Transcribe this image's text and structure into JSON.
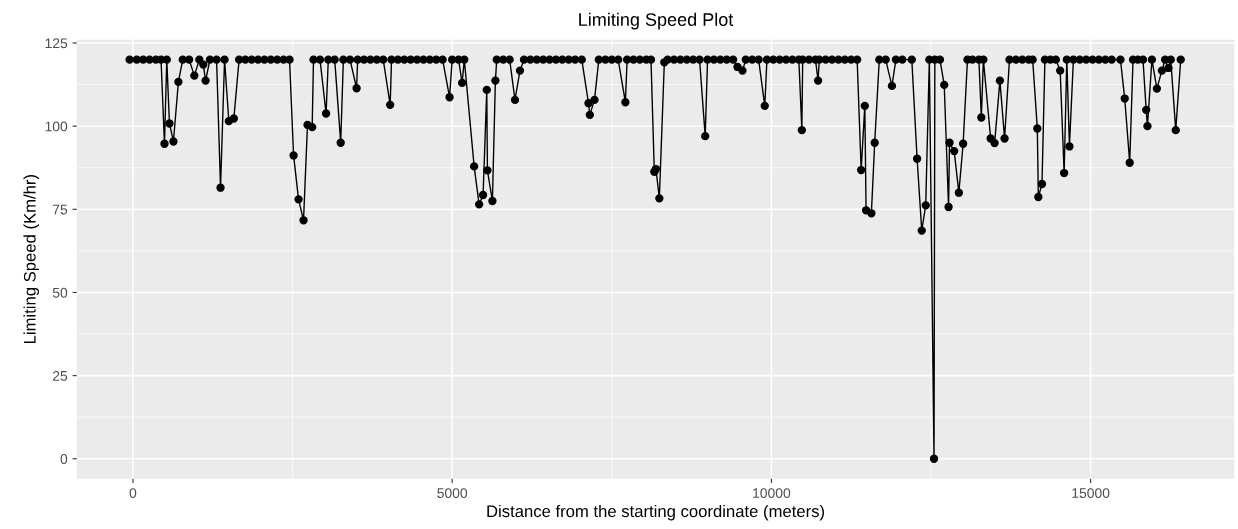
{
  "chart_data": {
    "type": "line",
    "title": "Limiting Speed Plot",
    "xlabel": "Distance from the starting coordinate (meters)",
    "ylabel": "Limiting Speed (Km/hr)",
    "xlim": [
      -880,
      17250
    ],
    "ylim": [
      -6,
      126
    ],
    "xticks": [
      0,
      5000,
      10000,
      15000
    ],
    "yticks": [
      0,
      25,
      50,
      75,
      100,
      125
    ],
    "grid": true,
    "marker": "circle",
    "line_style": "solid",
    "series": [
      {
        "color": "#000000",
        "x": [
          -52,
          60,
          160,
          260,
          360,
          440,
          494,
          530,
          572,
          634,
          712,
          780,
          880,
          962,
          1040,
          1102,
          1138,
          1206,
          1310,
          1372,
          1435,
          1502,
          1580,
          1663,
          1760,
          1860,
          1960,
          2060,
          2160,
          2260,
          2360,
          2453,
          2516,
          2594,
          2672,
          2734,
          2807,
          2828,
          2930,
          3025,
          3060,
          3160,
          3254,
          3296,
          3400,
          3503,
          3520,
          3620,
          3720,
          3820,
          3920,
          4029,
          4050,
          4150,
          4250,
          4350,
          4450,
          4550,
          4650,
          4750,
          4850,
          4959,
          5000,
          5100,
          5156,
          5190,
          5344,
          5422,
          5484,
          5542,
          5552,
          5630,
          5677,
          5698,
          5800,
          5900,
          5984,
          6062,
          6125,
          6225,
          6325,
          6425,
          6525,
          6625,
          6725,
          6825,
          6925,
          7030,
          7135,
          7156,
          7229,
          7297,
          7400,
          7500,
          7600,
          7713,
          7740,
          7840,
          7940,
          8040,
          8114,
          8166,
          8192,
          8245,
          8323,
          8375,
          8475,
          8575,
          8675,
          8775,
          8875,
          8963,
          9000,
          9100,
          9200,
          9300,
          9400,
          9469,
          9547,
          9599,
          9700,
          9800,
          9896,
          9930,
          10030,
          10130,
          10230,
          10330,
          10430,
          10477,
          10490,
          10590,
          10690,
          10731,
          10750,
          10850,
          10950,
          11050,
          11150,
          11250,
          11343,
          11406,
          11463,
          11483,
          11566,
          11618,
          11690,
          11790,
          11888,
          11950,
          12050,
          12199,
          12282,
          12355,
          12417,
          12474,
          12547,
          12560,
          12640,
          12707,
          12775,
          12790,
          12863,
          12936,
          13003,
          13071,
          13150,
          13250,
          13288,
          13320,
          13434,
          13496,
          13579,
          13652,
          13729,
          13830,
          13930,
          14030,
          14092,
          14165,
          14181,
          14238,
          14284,
          14370,
          14455,
          14523,
          14585,
          14627,
          14668,
          14730,
          14830,
          14930,
          15030,
          15130,
          15230,
          15330,
          15467,
          15534,
          15612,
          15664,
          15740,
          15820,
          15870,
          15890,
          15960,
          16038,
          16116,
          16167,
          16219,
          16255,
          16333,
          16411
        ],
        "values": [
          120,
          120,
          120,
          120,
          120,
          120,
          94.7,
          120,
          100.8,
          95.4,
          113.3,
          120,
          120,
          115.2,
          120,
          118.5,
          113.7,
          120,
          120,
          81.5,
          120,
          101.5,
          102.3,
          120,
          120,
          120,
          120,
          120,
          120,
          120,
          120,
          120,
          91.2,
          78,
          71.7,
          100.4,
          99.7,
          120,
          120,
          103.8,
          120,
          120,
          95,
          120,
          120,
          111.4,
          120,
          120,
          120,
          120,
          120,
          106.4,
          120,
          120,
          120,
          120,
          120,
          120,
          120,
          120,
          120,
          108.7,
          120,
          120,
          113,
          120,
          87.9,
          76.5,
          79.3,
          110.9,
          86.7,
          77.5,
          113.7,
          120,
          120,
          120,
          107.9,
          116.7,
          120,
          120,
          120,
          120,
          120,
          120,
          120,
          120,
          120,
          120,
          106.9,
          103.4,
          107.9,
          120,
          120,
          120,
          120,
          107.2,
          120,
          120,
          120,
          120,
          120,
          86.3,
          87.1,
          78.3,
          119.2,
          120,
          120,
          120,
          120,
          120,
          120,
          97,
          120,
          120,
          120,
          120,
          120,
          117.8,
          116.7,
          120,
          120,
          120,
          106.1,
          120,
          120,
          120,
          120,
          120,
          120,
          98.8,
          120,
          120,
          120,
          113.7,
          120,
          120,
          120,
          120,
          120,
          120,
          120,
          86.8,
          106.1,
          74.7,
          73.8,
          95,
          120,
          120,
          112.1,
          120,
          120,
          120,
          90.2,
          68.6,
          76.2,
          120,
          0,
          120,
          120,
          112.4,
          75.7,
          95,
          92.5,
          80,
          94.7,
          120,
          120,
          120,
          102.6,
          120,
          96.3,
          94.9,
          113.7,
          96.3,
          120,
          120,
          120,
          120,
          120,
          99.3,
          78.7,
          82.6,
          120,
          120,
          120,
          116.7,
          85.9,
          120,
          93.9,
          120,
          120,
          120,
          120,
          120,
          120,
          120,
          120,
          108.3,
          89,
          120,
          120,
          120,
          104.9,
          100,
          120,
          111.3,
          116.7,
          120,
          117.5,
          120,
          98.8,
          120
        ]
      }
    ]
  }
}
